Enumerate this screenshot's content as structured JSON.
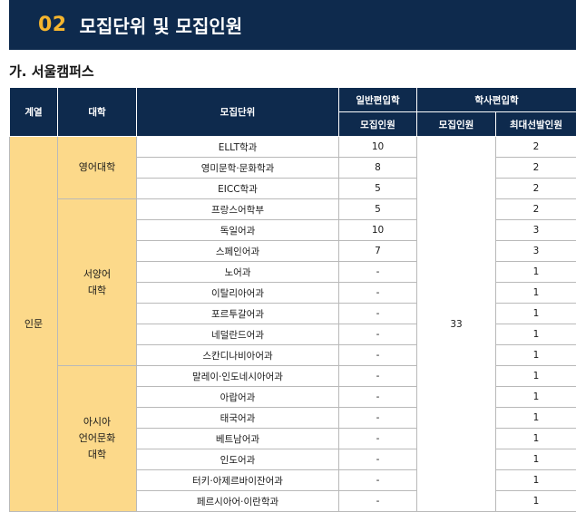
{
  "banner": {
    "number": "02",
    "title": "모집단위 및 모집인원"
  },
  "section": {
    "title": "가. 서울캠퍼스"
  },
  "table": {
    "headers": {
      "field": "계열",
      "college": "대학",
      "unit": "모집단위",
      "general_transfer": "일반편입학",
      "bachelor_transfer": "학사편입학",
      "general_quota": "모집인원",
      "bachelor_quota": "모집인원",
      "max_selection": "최대선발인원"
    },
    "field_name": "인문",
    "bachelor_total": "33",
    "colleges": [
      {
        "name": "영어대학",
        "rows": [
          {
            "unit": "ELLT학과",
            "general": "10",
            "max": "2"
          },
          {
            "unit": "영미문학·문화학과",
            "general": "8",
            "max": "2"
          },
          {
            "unit": "EICC학과",
            "general": "5",
            "max": "2"
          }
        ]
      },
      {
        "name": "서양어\n대학",
        "rows": [
          {
            "unit": "프랑스어학부",
            "general": "5",
            "max": "2"
          },
          {
            "unit": "독일어과",
            "general": "10",
            "max": "3"
          },
          {
            "unit": "스페인어과",
            "general": "7",
            "max": "3"
          },
          {
            "unit": "노어과",
            "general": "-",
            "max": "1"
          },
          {
            "unit": "이탈리아어과",
            "general": "-",
            "max": "1"
          },
          {
            "unit": "포르투갈어과",
            "general": "-",
            "max": "1"
          },
          {
            "unit": "네덜란드어과",
            "general": "-",
            "max": "1"
          },
          {
            "unit": "스칸디나비아어과",
            "general": "-",
            "max": "1"
          }
        ]
      },
      {
        "name": "아시아\n언어문화\n대학",
        "rows": [
          {
            "unit": "말레이·인도네시아어과",
            "general": "-",
            "max": "1"
          },
          {
            "unit": "아랍어과",
            "general": "-",
            "max": "1"
          },
          {
            "unit": "태국어과",
            "general": "-",
            "max": "1"
          },
          {
            "unit": "베트남어과",
            "general": "-",
            "max": "1"
          },
          {
            "unit": "인도어과",
            "general": "-",
            "max": "1"
          },
          {
            "unit": "터키·아제르바이잔어과",
            "general": "-",
            "max": "1"
          },
          {
            "unit": "페르시아어·이란학과",
            "general": "-",
            "max": "1"
          }
        ]
      }
    ]
  }
}
